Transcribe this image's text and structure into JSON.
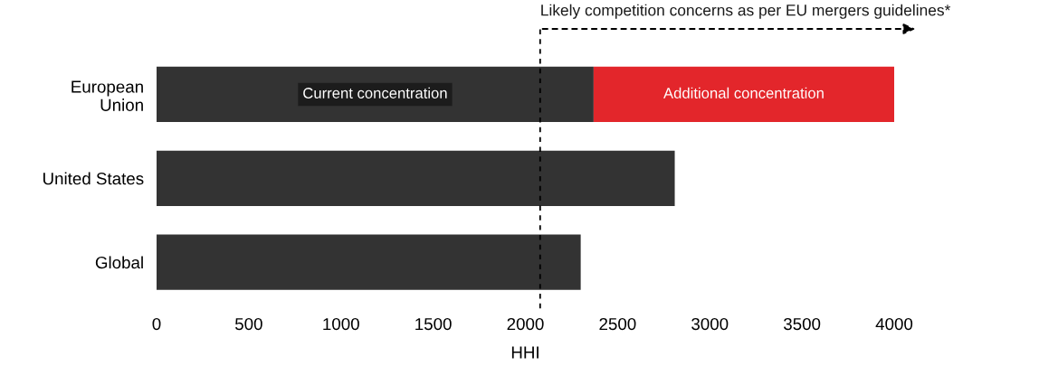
{
  "chart_data": {
    "type": "bar",
    "orientation": "horizontal",
    "stacked": true,
    "categories": [
      "European\nUnion",
      "United States",
      "Global"
    ],
    "series": [
      {
        "name": "Current concentration",
        "color": "#333333",
        "values": [
          2370,
          2810,
          2300
        ]
      },
      {
        "name": "Additional concentration",
        "color": "#e3262b",
        "values": [
          1630,
          null,
          null
        ]
      }
    ],
    "xlabel": "HHI",
    "xlim": [
      0,
      4000
    ],
    "xticks": [
      0,
      500,
      1000,
      1500,
      2000,
      2500,
      3000,
      3500,
      4000
    ],
    "ref_lines": [
      {
        "axis": "x",
        "value": 2080,
        "label": "Likely competition concerns as per EU mergers guidelines*",
        "line_style": "dashed",
        "color": "#000000"
      }
    ],
    "grid": false
  }
}
